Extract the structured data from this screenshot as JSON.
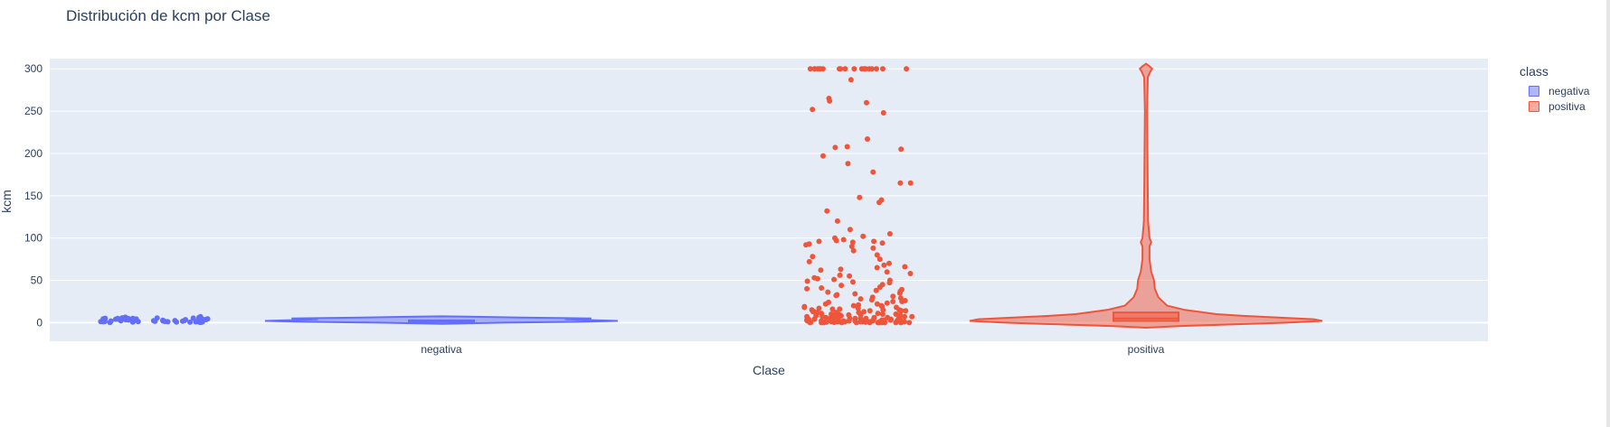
{
  "title": "Distribución de kcm por Clase",
  "chart_data": {
    "type": "violin",
    "xlabel": "Clase",
    "ylabel": "kcm",
    "categories": [
      "negativa",
      "positiva"
    ],
    "ylim": [
      -22,
      312
    ],
    "yticks": [
      0,
      50,
      100,
      150,
      200,
      250,
      300
    ],
    "grid": true,
    "legend_title": "class",
    "legend_position": "right",
    "series": [
      {
        "name": "negativa",
        "color": "#636efa",
        "box": {
          "q1": 0.8,
          "median": 1.5,
          "q3": 2.5
        },
        "density_profile": [
          [
            -1.5,
            0.0
          ],
          [
            0,
            0.35
          ],
          [
            1,
            0.8
          ],
          [
            2,
            1.0
          ],
          [
            3,
            0.85
          ],
          [
            4,
            0.7
          ],
          [
            5,
            0.85
          ],
          [
            6,
            0.45
          ],
          [
            7,
            0.15
          ],
          [
            7.5,
            0.0
          ]
        ],
        "points": [
          0.2,
          0.5,
          0.8,
          1,
          1.2,
          1.5,
          1.8,
          2,
          2.2,
          2.5,
          2.8,
          3,
          3.2,
          3.5,
          3.8,
          4,
          4.2,
          4.5,
          4.8,
          5,
          5.3,
          5.6,
          6,
          6.4,
          7,
          0.3,
          0.7,
          1.1,
          1.6,
          2.1,
          2.6,
          3.1,
          3.6,
          4.1,
          4.6,
          5.1,
          0.4,
          0.9,
          1.3,
          1.9,
          2.4,
          2.9,
          3.4,
          3.9,
          4.4,
          4.9,
          5.4,
          0.6,
          1.4,
          2.3
        ]
      },
      {
        "name": "positiva",
        "color": "#ef553b",
        "box": {
          "q1": 2,
          "median": 5,
          "q3": 12
        },
        "density_profile": [
          [
            -6,
            0.0
          ],
          [
            -4,
            0.2
          ],
          [
            -2,
            0.5
          ],
          [
            0,
            0.8
          ],
          [
            2,
            1.0
          ],
          [
            4,
            0.95
          ],
          [
            6,
            0.75
          ],
          [
            8,
            0.55
          ],
          [
            10,
            0.4
          ],
          [
            15,
            0.22
          ],
          [
            20,
            0.12
          ],
          [
            30,
            0.07
          ],
          [
            40,
            0.05
          ],
          [
            50,
            0.045
          ],
          [
            60,
            0.03
          ],
          [
            75,
            0.02
          ],
          [
            90,
            0.02
          ],
          [
            95,
            0.03
          ],
          [
            100,
            0.02
          ],
          [
            120,
            0.012
          ],
          [
            150,
            0.01
          ],
          [
            200,
            0.008
          ],
          [
            250,
            0.006
          ],
          [
            290,
            0.01
          ],
          [
            297,
            0.025
          ],
          [
            300,
            0.035
          ],
          [
            303,
            0.02
          ],
          [
            306,
            0.0
          ]
        ],
        "points": [
          300,
          300,
          300,
          300,
          300,
          300,
          300,
          300,
          300,
          300,
          300,
          300,
          300,
          300,
          300,
          300,
          300,
          300,
          300,
          287,
          265,
          262,
          260,
          252,
          248,
          217,
          208,
          207,
          205,
          197,
          188,
          178,
          165,
          165,
          148,
          145,
          142,
          132,
          120,
          110,
          105,
          102,
          100,
          98,
          97,
          96,
          96,
          95,
          94,
          93,
          92,
          90,
          88,
          85,
          80,
          78,
          75,
          72,
          70,
          68,
          66,
          65,
          63,
          62,
          60,
          58,
          56,
          55,
          53,
          52,
          51,
          50,
          49,
          48,
          47,
          45,
          44,
          42,
          41,
          40,
          39,
          38,
          37,
          36,
          35,
          34,
          33,
          32,
          31,
          30,
          29,
          28,
          27,
          26,
          25,
          24,
          23,
          22,
          21,
          20,
          20,
          19,
          18,
          18,
          17,
          16,
          16,
          15,
          15,
          14,
          14,
          13,
          13,
          12,
          12,
          11,
          11,
          10,
          10,
          10,
          9,
          9,
          9,
          8,
          8,
          8,
          7,
          7,
          7,
          6,
          6,
          6,
          5,
          5,
          5,
          5,
          4,
          4,
          4,
          4,
          3,
          3,
          3,
          3,
          3,
          2,
          2,
          2,
          2,
          2,
          2,
          1,
          1,
          1,
          1,
          1,
          1,
          1,
          0.5,
          0.5,
          0.5,
          0.5,
          0.3,
          0.3,
          0.3,
          0,
          0,
          0,
          0,
          0,
          0,
          0,
          0,
          25,
          22,
          19,
          17,
          14,
          12,
          10,
          8,
          6,
          4,
          2,
          1,
          0,
          0,
          0,
          3,
          5,
          7,
          9,
          11,
          13,
          15,
          6,
          4,
          2,
          1,
          0,
          0,
          1,
          2
        ]
      }
    ]
  }
}
